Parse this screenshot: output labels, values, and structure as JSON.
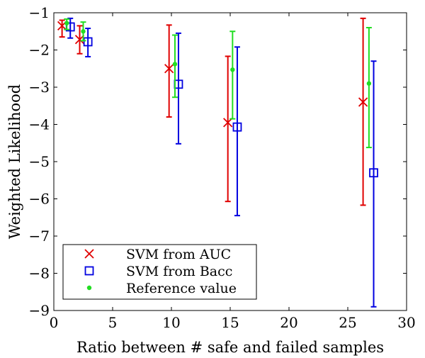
{
  "chart_data": {
    "type": "scatter",
    "title": "",
    "xlabel": "Ratio between # safe and failed samples",
    "ylabel": "Weighted Likelihood",
    "xlim": [
      0,
      30
    ],
    "ylim": [
      -9,
      -1
    ],
    "xticks": [
      0,
      5,
      10,
      15,
      20,
      25,
      30
    ],
    "yticks": [
      -1,
      -2,
      -3,
      -4,
      -5,
      -6,
      -7,
      -8,
      -9
    ],
    "legend_position": "bottom-left",
    "series": [
      {
        "name": "SVM from AUC",
        "marker": "x",
        "color": "#e00000",
        "points": [
          {
            "x": 0.7,
            "y": -1.35,
            "low": -1.65,
            "high": -1.2
          },
          {
            "x": 2.2,
            "y": -1.72,
            "low": -2.1,
            "high": -1.35
          },
          {
            "x": 9.8,
            "y": -2.5,
            "low": -3.8,
            "high": -1.33
          },
          {
            "x": 14.8,
            "y": -3.95,
            "low": -6.07,
            "high": -2.17
          },
          {
            "x": 26.3,
            "y": -3.4,
            "low": -6.17,
            "high": -1.15
          }
        ]
      },
      {
        "name": "SVM from Bacc",
        "marker": "square",
        "color": "#0000e0",
        "points": [
          {
            "x": 1.4,
            "y": -1.38,
            "low": -1.68,
            "high": -1.15
          },
          {
            "x": 2.9,
            "y": -1.78,
            "low": -2.18,
            "high": -1.42
          },
          {
            "x": 10.6,
            "y": -2.92,
            "low": -4.52,
            "high": -1.55
          },
          {
            "x": 15.6,
            "y": -4.07,
            "low": -6.45,
            "high": -1.92
          },
          {
            "x": 27.2,
            "y": -5.3,
            "low": -8.9,
            "high": -2.3
          }
        ]
      },
      {
        "name": "Reference value",
        "marker": "dot",
        "color": "#22dd22",
        "points": [
          {
            "x": 1.1,
            "y": -1.28,
            "low": -1.45,
            "high": -1.17
          },
          {
            "x": 2.5,
            "y": -1.5,
            "low": -1.75,
            "high": -1.25
          },
          {
            "x": 10.3,
            "y": -2.38,
            "low": -3.27,
            "high": -1.6
          },
          {
            "x": 15.2,
            "y": -2.53,
            "low": -3.85,
            "high": -1.5
          },
          {
            "x": 26.8,
            "y": -2.9,
            "low": -4.62,
            "high": -1.4
          }
        ]
      }
    ]
  }
}
